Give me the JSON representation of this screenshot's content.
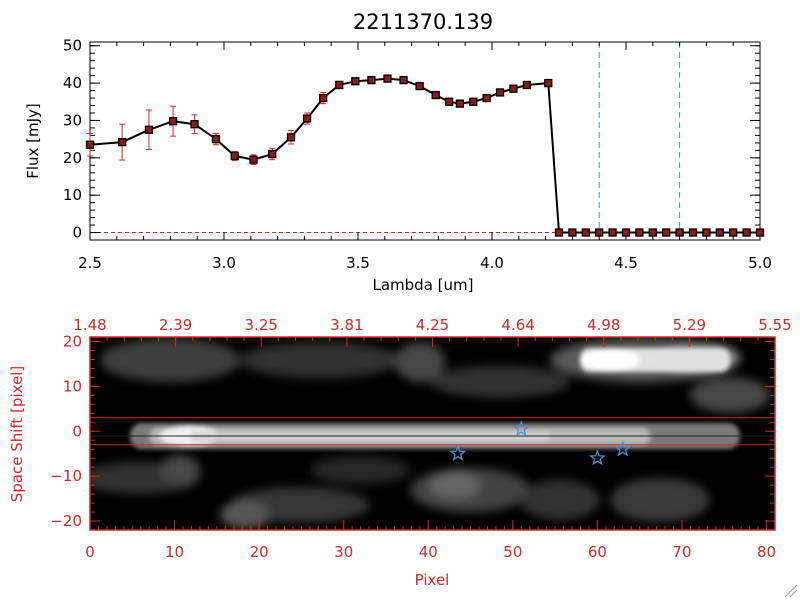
{
  "colors": {
    "axis_top": "#000000",
    "axis_bottom": "#cc2a2a",
    "error_bar": "#cc2a2a",
    "marker_fill": "#8a1c1c",
    "dashed_line": "#4a90d0",
    "star": "#4a90d0",
    "line": "#000000",
    "spectrum_bg": "#000000"
  },
  "chart_data": [
    {
      "type": "line",
      "title": "2211370.139",
      "xlabel": "Lambda [um]",
      "ylabel": "Flux [mJy]",
      "xlim": [
        2.5,
        5.0
      ],
      "ylim": [
        -2,
        51
      ],
      "x_ticks": [
        2.5,
        3.0,
        3.5,
        4.0,
        4.5,
        5.0
      ],
      "x_tick_labels": [
        "2.5",
        "3.0",
        "3.5",
        "4.0",
        "4.5",
        "5.0"
      ],
      "y_ticks": [
        0,
        10,
        20,
        30,
        40,
        50
      ],
      "y_tick_labels": [
        "0",
        "10",
        "20",
        "30",
        "40",
        "50"
      ],
      "vertical_dashed_lines_x": [
        4.4,
        4.7
      ],
      "x": [
        2.5,
        2.62,
        2.72,
        2.81,
        2.89,
        2.97,
        3.04,
        3.11,
        3.18,
        3.25,
        3.31,
        3.37,
        3.43,
        3.49,
        3.55,
        3.61,
        3.67,
        3.73,
        3.79,
        3.84,
        3.88,
        3.93,
        3.98,
        4.03,
        4.08,
        4.13,
        4.21,
        4.25,
        4.3,
        4.35,
        4.4,
        4.45,
        4.5,
        4.55,
        4.6,
        4.65,
        4.7,
        4.75,
        4.8,
        4.85,
        4.9,
        4.95,
        5.0
      ],
      "y": [
        23.5,
        24.2,
        27.5,
        29.8,
        29.0,
        25.0,
        20.5,
        19.5,
        21.0,
        25.5,
        30.5,
        36.0,
        39.5,
        40.5,
        40.8,
        41.2,
        40.8,
        39.2,
        36.8,
        35.0,
        34.5,
        35.0,
        36.0,
        37.5,
        38.5,
        39.5,
        40.0,
        0,
        0,
        0,
        0,
        0,
        0,
        0,
        0,
        0,
        0,
        0,
        0,
        0,
        0,
        0,
        0
      ],
      "y_err": [
        3.0,
        4.8,
        5.3,
        4.0,
        2.5,
        1.5,
        1.2,
        1.3,
        1.5,
        1.8,
        1.5,
        1.5,
        1.0,
        0.8,
        0.8,
        0.8,
        0.8,
        0.8,
        0.8,
        0.8,
        0.8,
        0.8,
        0.8,
        0.8,
        0.8,
        0.8,
        0.8,
        0,
        0,
        0,
        0,
        0,
        0,
        0,
        0,
        0,
        0,
        0,
        0,
        0,
        0,
        0,
        0
      ]
    },
    {
      "type": "heatmap",
      "xlabel": "Pixel",
      "ylabel": "Space Shift [pixel]",
      "xlim": [
        0,
        81
      ],
      "ylim": [
        -22,
        21
      ],
      "x_ticks": [
        0,
        10,
        20,
        30,
        40,
        50,
        60,
        70,
        80
      ],
      "x_tick_labels": [
        "0",
        "10",
        "20",
        "30",
        "40",
        "50",
        "60",
        "70",
        "80"
      ],
      "y_ticks": [
        -20,
        -10,
        0,
        10,
        20
      ],
      "y_tick_labels": [
        "−20",
        "−10",
        "0",
        "10",
        "20"
      ],
      "top_axis_tick_labels": [
        "1.48",
        "2.39",
        "3.25",
        "3.81",
        "4.25",
        "4.64",
        "4.98",
        "5.29",
        "5.55"
      ],
      "aperture_lines_y": [
        3,
        -3
      ],
      "stars": [
        {
          "x": 43.5,
          "y": -5
        },
        {
          "x": 51,
          "y": 0.5
        },
        {
          "x": 60,
          "y": -6
        },
        {
          "x": 63,
          "y": -4
        }
      ]
    }
  ]
}
